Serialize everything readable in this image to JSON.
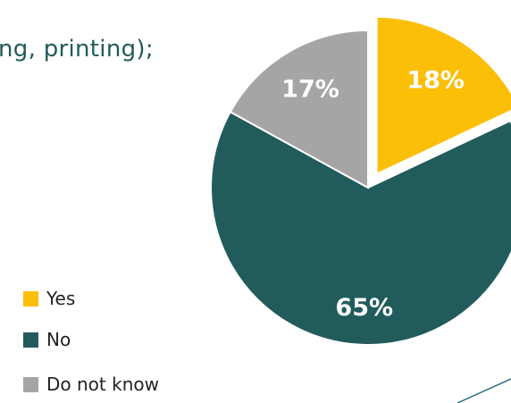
{
  "fragment_text": "ng, printing);",
  "colors": {
    "text_accent": "#225b5b",
    "line_accent": "#2b6f80"
  },
  "chart_data": {
    "type": "pie",
    "categories": [
      "Yes",
      "No",
      "Do not know"
    ],
    "values": [
      18,
      65,
      17
    ],
    "labels": [
      "18%",
      "65%",
      "17%"
    ],
    "colors": [
      "#fbbf07",
      "#225b5b",
      "#a5a5a5"
    ],
    "label_color": "#ffffff",
    "exploded": [
      "Yes"
    ],
    "legend_position": "left",
    "title": "",
    "xlabel": "",
    "ylabel": ""
  }
}
